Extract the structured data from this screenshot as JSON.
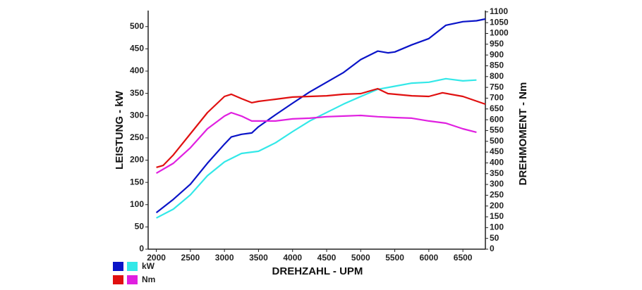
{
  "chart_data": {
    "type": "line",
    "xlabel": "DREHZAHL - UPM",
    "ylabel": "LEISTUNG - kW",
    "y2label": "DREHMOMENT - Nm",
    "xlim": [
      1880,
      6830
    ],
    "xticks": [
      2000,
      2500,
      3000,
      3500,
      4000,
      4500,
      5000,
      5500,
      6000,
      6500
    ],
    "ylim": [
      0,
      536
    ],
    "yticks": [
      0,
      50,
      100,
      150,
      200,
      250,
      300,
      350,
      400,
      450,
      500
    ],
    "y2lim": [
      0,
      1106
    ],
    "y2ticks": [
      0,
      50,
      100,
      150,
      200,
      250,
      300,
      350,
      400,
      450,
      500,
      550,
      600,
      650,
      700,
      750,
      800,
      850,
      900,
      950,
      1000,
      1050,
      1100
    ],
    "legend": [
      {
        "label": "kW",
        "colors": [
          "#0a14c8",
          "#33e8e8"
        ]
      },
      {
        "label": "Nm",
        "colors": [
          "#e01010",
          "#e020e0"
        ]
      }
    ],
    "series": [
      {
        "color": "#0a14c8",
        "axis": "y",
        "x": [
          2000,
          2250,
          2500,
          2750,
          3000,
          3100,
          3250,
          3400,
          3500,
          3750,
          4000,
          4250,
          4500,
          4750,
          5000,
          5250,
          5400,
          5500,
          5750,
          6000,
          6250,
          6500,
          6700,
          6830
        ],
        "values": [
          82,
          112,
          146,
          193,
          236,
          252,
          258,
          261,
          275,
          302,
          328,
          353,
          375,
          397,
          426,
          445,
          441,
          443,
          459,
          473,
          503,
          511,
          513,
          517
        ]
      },
      {
        "color": "#33e8e8",
        "axis": "y",
        "x": [
          2000,
          2250,
          2500,
          2750,
          3000,
          3250,
          3500,
          3750,
          4000,
          4250,
          4500,
          4750,
          5000,
          5250,
          5500,
          5750,
          6000,
          6250,
          6500,
          6700
        ],
        "values": [
          70,
          90,
          122,
          165,
          196,
          215,
          220,
          239,
          264,
          288,
          307,
          326,
          343,
          359,
          366,
          373,
          375,
          383,
          378,
          380
        ]
      },
      {
        "color": "#e01010",
        "axis": "y2",
        "x": [
          2000,
          2100,
          2250,
          2500,
          2750,
          3000,
          3100,
          3250,
          3400,
          3500,
          3750,
          4000,
          4250,
          4500,
          4750,
          5000,
          5250,
          5400,
          5500,
          5750,
          6000,
          6200,
          6500,
          6830
        ],
        "values": [
          379,
          388,
          437,
          535,
          633,
          708,
          718,
          698,
          679,
          685,
          695,
          705,
          708,
          711,
          718,
          721,
          744,
          721,
          718,
          711,
          708,
          725,
          708,
          672
        ]
      },
      {
        "color": "#e020e0",
        "axis": "y2",
        "x": [
          2000,
          2250,
          2500,
          2750,
          3000,
          3100,
          3250,
          3400,
          3750,
          4000,
          4250,
          4500,
          4750,
          5000,
          5250,
          5500,
          5750,
          6000,
          6250,
          6500,
          6700
        ],
        "values": [
          352,
          398,
          470,
          558,
          617,
          633,
          617,
          594,
          594,
          604,
          607,
          614,
          617,
          620,
          614,
          610,
          607,
          594,
          584,
          558,
          542
        ]
      }
    ]
  }
}
